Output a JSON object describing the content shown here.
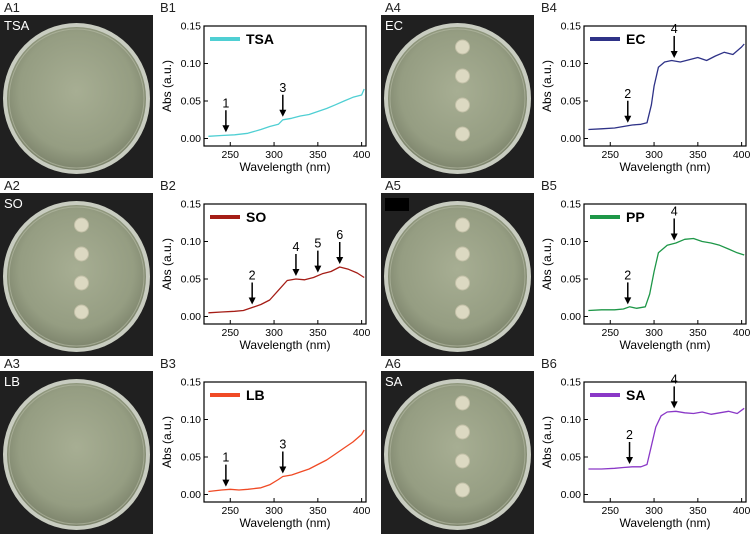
{
  "panels": {
    "A1": "A1",
    "A2": "A2",
    "A3": "A3",
    "A4": "A4",
    "A5": "A5",
    "A6": "A6",
    "B1": "B1",
    "B2": "B2",
    "B3": "B3",
    "B4": "B4",
    "B5": "B5",
    "B6": "B6"
  },
  "photos": [
    {
      "id": "A1",
      "label": "TSA",
      "colonies": 0
    },
    {
      "id": "A2",
      "label": "SO",
      "colonies": 4
    },
    {
      "id": "A3",
      "label": "LB",
      "colonies": 0
    },
    {
      "id": "A4",
      "label": "EC",
      "colonies": 4
    },
    {
      "id": "A5",
      "label": "",
      "colonies": 4
    },
    {
      "id": "A6",
      "label": "SA",
      "colonies": 4
    }
  ],
  "axis": {
    "xlabel": "Wavelength (nm)",
    "ylabel": "Abs (a.u.)",
    "xticks": [
      "250",
      "300",
      "350",
      "400"
    ],
    "yticks": [
      "0.00",
      "0.05",
      "0.10",
      "0.15"
    ]
  },
  "chart_data": [
    {
      "id": "B1",
      "type": "line",
      "legend": "TSA",
      "color": "#4fcfd3",
      "xlim": [
        220,
        405
      ],
      "ylim": [
        -0.01,
        0.15
      ],
      "x": [
        225,
        240,
        255,
        270,
        285,
        295,
        305,
        310,
        320,
        330,
        340,
        350,
        360,
        370,
        380,
        390,
        400,
        403
      ],
      "y": [
        0.003,
        0.004,
        0.005,
        0.007,
        0.012,
        0.016,
        0.019,
        0.025,
        0.027,
        0.03,
        0.032,
        0.036,
        0.04,
        0.045,
        0.05,
        0.055,
        0.058,
        0.066
      ],
      "annotations": [
        {
          "label": "1",
          "x": 245,
          "y": 0.005
        },
        {
          "label": "3",
          "x": 310,
          "y": 0.025
        }
      ]
    },
    {
      "id": "B2",
      "type": "line",
      "legend": "SO",
      "color": "#a51d16",
      "xlim": [
        220,
        405
      ],
      "ylim": [
        -0.01,
        0.15
      ],
      "x": [
        225,
        240,
        255,
        265,
        275,
        285,
        295,
        305,
        315,
        325,
        335,
        345,
        355,
        365,
        375,
        385,
        395,
        403
      ],
      "y": [
        0.005,
        0.006,
        0.007,
        0.008,
        0.012,
        0.016,
        0.022,
        0.035,
        0.048,
        0.05,
        0.049,
        0.052,
        0.057,
        0.06,
        0.066,
        0.063,
        0.058,
        0.052
      ],
      "annotations": [
        {
          "label": "2",
          "x": 275,
          "y": 0.012
        },
        {
          "label": "4",
          "x": 325,
          "y": 0.05
        },
        {
          "label": "5",
          "x": 350,
          "y": 0.055
        },
        {
          "label": "6",
          "x": 375,
          "y": 0.066
        }
      ]
    },
    {
      "id": "B3",
      "type": "line",
      "legend": "LB",
      "color": "#f04a25",
      "xlim": [
        220,
        405
      ],
      "ylim": [
        -0.01,
        0.15
      ],
      "x": [
        225,
        240,
        250,
        260,
        270,
        285,
        295,
        305,
        310,
        320,
        330,
        340,
        350,
        360,
        370,
        380,
        390,
        400,
        403
      ],
      "y": [
        0.004,
        0.006,
        0.007,
        0.006,
        0.007,
        0.009,
        0.013,
        0.02,
        0.024,
        0.026,
        0.03,
        0.034,
        0.04,
        0.046,
        0.054,
        0.062,
        0.07,
        0.08,
        0.086
      ],
      "annotations": [
        {
          "label": "1",
          "x": 245,
          "y": 0.007
        },
        {
          "label": "3",
          "x": 310,
          "y": 0.024
        }
      ]
    },
    {
      "id": "B4",
      "type": "line",
      "legend": "EC",
      "color": "#2e3287",
      "xlim": [
        220,
        405
      ],
      "ylim": [
        -0.01,
        0.15
      ],
      "x": [
        225,
        240,
        255,
        265,
        275,
        285,
        292,
        297,
        300,
        305,
        312,
        320,
        330,
        340,
        350,
        360,
        370,
        380,
        390,
        400,
        403
      ],
      "y": [
        0.012,
        0.013,
        0.014,
        0.016,
        0.018,
        0.019,
        0.021,
        0.045,
        0.07,
        0.095,
        0.102,
        0.104,
        0.102,
        0.105,
        0.108,
        0.104,
        0.11,
        0.115,
        0.112,
        0.122,
        0.126
      ],
      "annotations": [
        {
          "label": "2",
          "x": 270,
          "y": 0.018
        },
        {
          "label": "4",
          "x": 323,
          "y": 0.104
        }
      ]
    },
    {
      "id": "B5",
      "type": "line",
      "legend": "PP",
      "color": "#1e9748",
      "xlim": [
        220,
        405
      ],
      "ylim": [
        -0.01,
        0.15
      ],
      "x": [
        225,
        240,
        255,
        265,
        272,
        280,
        290,
        295,
        300,
        305,
        315,
        325,
        335,
        345,
        355,
        365,
        375,
        385,
        395,
        403
      ],
      "y": [
        0.008,
        0.009,
        0.009,
        0.01,
        0.013,
        0.011,
        0.013,
        0.03,
        0.06,
        0.085,
        0.095,
        0.098,
        0.103,
        0.104,
        0.1,
        0.098,
        0.095,
        0.09,
        0.085,
        0.082
      ],
      "annotations": [
        {
          "label": "2",
          "x": 270,
          "y": 0.012
        },
        {
          "label": "4",
          "x": 323,
          "y": 0.098
        }
      ]
    },
    {
      "id": "B6",
      "type": "line",
      "legend": "SA",
      "color": "#8a38c7",
      "xlim": [
        220,
        405
      ],
      "ylim": [
        -0.01,
        0.15
      ],
      "x": [
        225,
        240,
        255,
        265,
        275,
        285,
        292,
        297,
        302,
        308,
        315,
        325,
        335,
        345,
        355,
        365,
        375,
        385,
        395,
        403
      ],
      "y": [
        0.034,
        0.034,
        0.035,
        0.036,
        0.037,
        0.037,
        0.04,
        0.065,
        0.09,
        0.105,
        0.11,
        0.111,
        0.109,
        0.108,
        0.11,
        0.107,
        0.109,
        0.111,
        0.108,
        0.115
      ],
      "annotations": [
        {
          "label": "2",
          "x": 272,
          "y": 0.037
        },
        {
          "label": "4",
          "x": 323,
          "y": 0.111
        }
      ]
    }
  ]
}
